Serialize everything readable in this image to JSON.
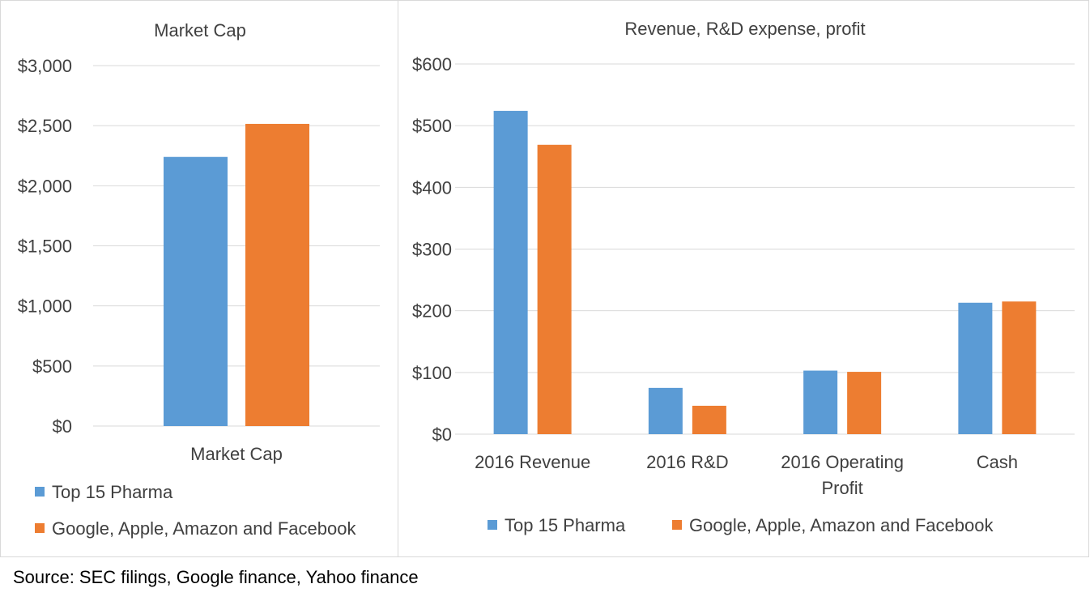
{
  "source_note": "Source: SEC filings, Google finance, Yahoo finance",
  "colors": {
    "series1": "#5b9bd5",
    "series2": "#ed7d31"
  },
  "chart_data": [
    {
      "type": "bar",
      "title": "Market Cap",
      "categories": [
        "Market Cap"
      ],
      "series": [
        {
          "name": "Top 15 Pharma",
          "values": [
            2240
          ]
        },
        {
          "name": "Google, Apple, Amazon and Facebook",
          "values": [
            2515
          ]
        }
      ],
      "ylim": [
        0,
        3000
      ],
      "yticks": [
        0,
        500,
        1000,
        1500,
        2000,
        2500,
        3000
      ],
      "ytick_labels": [
        "$0",
        "$500",
        "$1,000",
        "$1,500",
        "$2,000",
        "$2,500",
        "$3,000"
      ],
      "grid": true,
      "legend": "bottom"
    },
    {
      "type": "bar",
      "title": "Revenue, R&D expense, profit",
      "categories": [
        "2016 Revenue",
        "2016 R&D",
        "2016 Operating Profit",
        "Cash"
      ],
      "series": [
        {
          "name": "Top 15 Pharma",
          "values": [
            524,
            75,
            103,
            213
          ]
        },
        {
          "name": "Google, Apple, Amazon and Facebook",
          "values": [
            469,
            46,
            101,
            215
          ]
        }
      ],
      "ylim": [
        0,
        600
      ],
      "yticks": [
        0,
        100,
        200,
        300,
        400,
        500,
        600
      ],
      "ytick_labels": [
        "$0",
        "$100",
        "$200",
        "$300",
        "$400",
        "$500",
        "$600"
      ],
      "grid": true,
      "legend": "bottom"
    }
  ]
}
